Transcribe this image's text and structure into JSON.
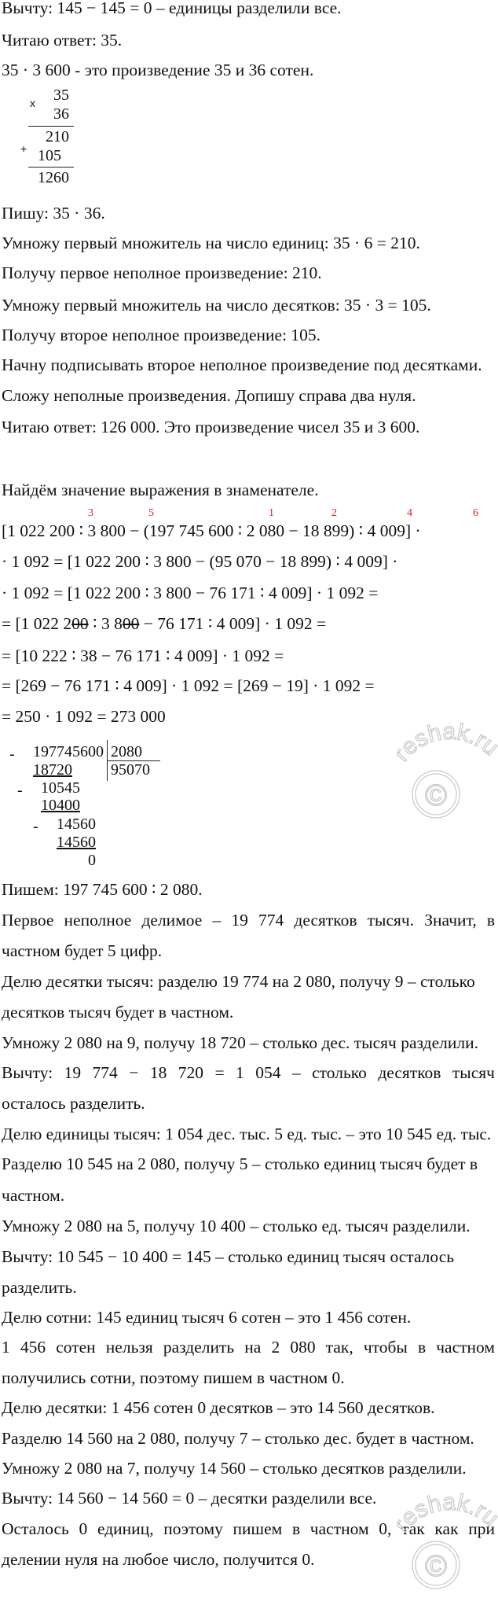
{
  "lines": [
    "Вычту:  145 − 145 = 0 – единицы разделили все.",
    "Читаю ответ: 35.",
    "35 · 3 600  - это произведение 35 и 36 сотен.",
    "Пишу:  35 · 36.",
    "Умножу первый множитель на число единиц:  35 · 6 = 210.",
    "Получу первое неполное произведение: 210.",
    "Умножу первый множитель на число десятков:  35 · 3 = 105.",
    "Получу второе неполное произведение: 105.",
    "Начну подписывать второе неполное произведение под десятками.",
    "Сложу неполные произведения. Допишу справа два нуля.",
    "Читаю ответ: 126 000. Это произведение чисел 35 и 3 600.",
    "Найдём значение выражения в знаменателе.",
    "Пишем:  197 745 600 ∶ 2 080.",
    "Первое неполное делимое – 19 774 десятков тысяч. Значит, в",
    "частном будет 5 цифр.",
    "Делю десятки тысяч: разделю 19 774 на 2 080, получу 9 – столько",
    "десятков тысяч будет в частном.",
    "Умножу 2 080 на 9, получу 18 720 – столько дес. тысяч разделили.",
    "Вычту:    19 774 − 18 720 = 1 054  –  столько  десятков  тысяч",
    "осталось разделить.",
    "Делю единицы тысяч: 1 054 дес. тыс. 5 ед. тыс. – это 10 545 ед. тыс.",
    "Разделю 10 545 на 2 080, получу 5 – столько единиц тысяч будет в",
    "частном.",
    "Умножу 2 080 на 5, получу 10 400 – столько ед. тысяч разделили.",
    "Вычту:  10 545 − 10 400 = 145 – столько единиц тысяч осталось",
    "разделить.",
    "Делю сотни: 145 единиц тысяч 6 сотен – это 1 456 сотен.",
    "1 456 сотен нельзя разделить на 2 080 так, чтобы в частном",
    "получились сотни, поэтому пишем в частном 0.",
    "Делю десятки: 1 456 сотен 0 десятков – это 14 560 десятков.",
    "Разделю 14 560 на 2 080, получу 7 – столько дес. будет в частном.",
    "Умножу 2 080 на 7, получу 14 560 – столько десятков разделили.",
    "Вычту:  14 560 − 14 560 = 0 – десятки разделили все.",
    "Осталось 0 единиц, поэтому пишем в частном 0, так как при",
    "делении нуля на любое число, получится 0."
  ],
  "multiplication": {
    "sign_times": "x",
    "factor1": "35",
    "factor2": "36",
    "sign_plus": "+",
    "partial1": "210",
    "partial2": "105",
    "result": "1260"
  },
  "formula": {
    "order_marks": [
      "3",
      "5",
      "1",
      "2",
      "4",
      "6"
    ],
    "line1": "[1 022 200 ∶ 3 800 − (197 745 600 ∶ 2 080 − 18 899) ∶ 4 009] ·",
    "line2": "· 1 092 = [1 022 200 ∶ 3 800 − (95 070 − 18 899) ∶ 4 009] ·",
    "line3": "· 1 092 = [1 022 200 ∶ 3 800 − 76 171 ∶ 4 009] · 1 092 =",
    "line4": {
      "a": "= [1 022 2",
      "s1": "00",
      "b": " ∶ 3 8",
      "s2": "00",
      "c": " − 76 171 ∶ 4 009] · 1 092 ="
    },
    "line5": "= [10 222 ∶ 38 − 76 171 ∶ 4 009] · 1 092 =",
    "line6": "= [269 − 76 171 ∶ 4 009] · 1 092 = [269 − 19] · 1 092 =",
    "line7": "= 250 · 1 092 = 273 000",
    "mark_color": "#e02020"
  },
  "division": {
    "minus": "-",
    "dividend": "197745600",
    "divisor": "2080",
    "quotient": "95070",
    "rows": [
      "18720",
      "10545",
      "10400",
      "14560",
      "14560",
      "0"
    ]
  },
  "watermark": {
    "text": "reshak.ru",
    "symbol": "©"
  }
}
